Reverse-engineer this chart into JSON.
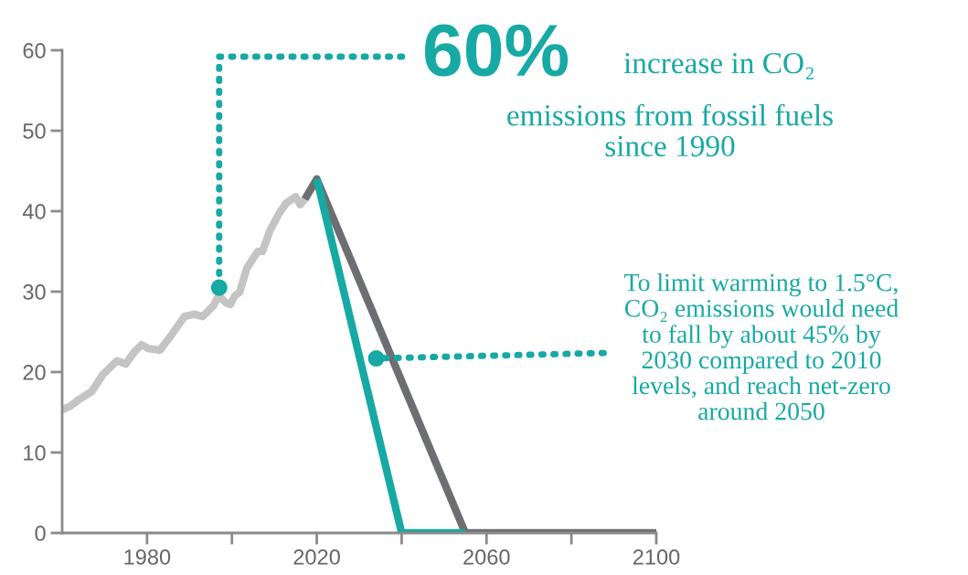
{
  "chart_data": {
    "type": "line",
    "series": [
      {
        "color": "#c4c4c4",
        "x": [
          1960,
          1962,
          1964,
          1967,
          1969.6,
          1972.9,
          1975,
          1977,
          1978.7,
          1980.4,
          1983,
          1985.6,
          1988.8,
          1991.2,
          1993.1,
          1995.6,
          1996.9,
          1998.6,
          1999.6,
          2000.7,
          2001.8,
          2003.5,
          2006.1,
          2007.2,
          2008.9,
          2011.1,
          2012.8,
          2015,
          2016.1,
          2017.2
        ],
        "values": [
          15.3,
          15.8,
          16.6,
          17.6,
          19.7,
          21.4,
          21.0,
          22.5,
          23.4,
          22.9,
          22.7,
          24.5,
          26.9,
          27.2,
          26.9,
          28.2,
          29.5,
          28.6,
          28.4,
          29.5,
          29.9,
          32.9,
          35.0,
          35.0,
          37.5,
          39.7,
          41.0,
          41.8,
          40.8,
          41.5
        ]
      },
      {
        "color": "#6d6e71",
        "x": [
          2017.2,
          2020,
          2055,
          2100
        ],
        "values": [
          41.5,
          44,
          0,
          0
        ]
      },
      {
        "color": "#17a9a4",
        "x": [
          2020,
          2040,
          2055
        ],
        "values": [
          44,
          0,
          0
        ]
      }
    ],
    "xlim": [
      1960,
      2100
    ],
    "ylim": [
      0,
      60
    ],
    "xticks": [
      1980,
      {
        "value": 2000,
        "label": null
      },
      2020,
      {
        "value": 2040,
        "label": null
      },
      2060,
      {
        "value": 2080,
        "label": null
      },
      2100
    ],
    "yticks": [
      0,
      10,
      20,
      30,
      40,
      50,
      60
    ],
    "grid": false,
    "legend": false,
    "annotations": [
      {
        "text": "60%",
        "x": 1997,
        "y": 30.5
      },
      "increase in CO₂",
      "emissions from fossil fuels\nsince 1990",
      {
        "text": "To limit warming to 1.5°C,\nCO₂ emissions would need\nto fall by about 45% by\n2030 compared to 2010\nlevels, and reach net-zero\naround 2050",
        "x": 2034,
        "y": 21.7
      }
    ]
  }
}
